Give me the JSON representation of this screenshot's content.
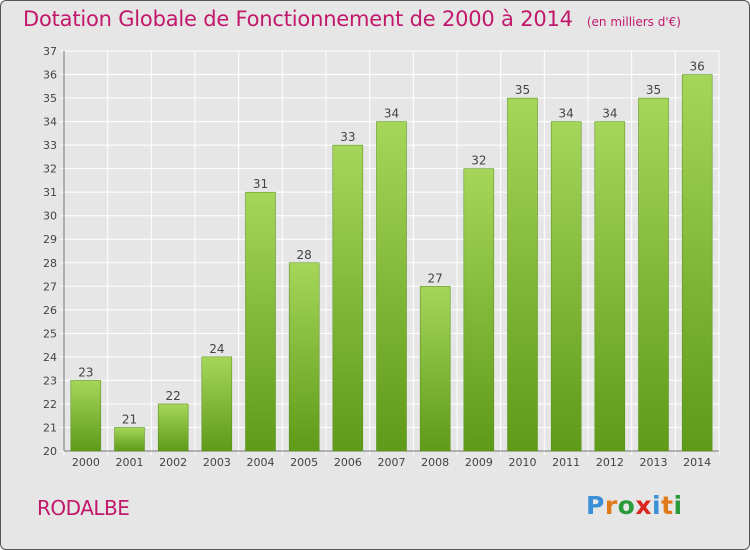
{
  "title": "Dotation Globale de Fonctionnement de 2000 à 2014",
  "subtitle": "(en milliers d'€)",
  "commune": "RODALBE",
  "logo": {
    "letters": [
      "P",
      "r",
      "o",
      "x",
      "i",
      "t",
      "i"
    ],
    "colors": [
      "#3a8fd8",
      "#e07a1a",
      "#2a9a3a",
      "#d9281f",
      "#3a8fd8",
      "#e07a1a",
      "#2a9a3a"
    ]
  },
  "colors": {
    "title": "#c2186b",
    "bar_light": "#a5d65a",
    "bar_dark": "#5f9a18",
    "background": "#e6e6e6"
  },
  "chart_data": {
    "type": "bar",
    "categories": [
      "2000",
      "2001",
      "2002",
      "2003",
      "2004",
      "2005",
      "2006",
      "2007",
      "2008",
      "2009",
      "2010",
      "2011",
      "2012",
      "2013",
      "2014"
    ],
    "values": [
      23,
      21,
      22,
      24,
      31,
      28,
      33,
      34,
      27,
      32,
      35,
      34,
      34,
      35,
      36
    ],
    "ylim": [
      20,
      37
    ],
    "yticks": [
      "20",
      "21",
      "22",
      "23",
      "24",
      "25",
      "26",
      "27",
      "28",
      "29",
      "30",
      "31",
      "32",
      "33",
      "34",
      "35",
      "36",
      "37"
    ],
    "grid": true,
    "data_labels": true
  }
}
